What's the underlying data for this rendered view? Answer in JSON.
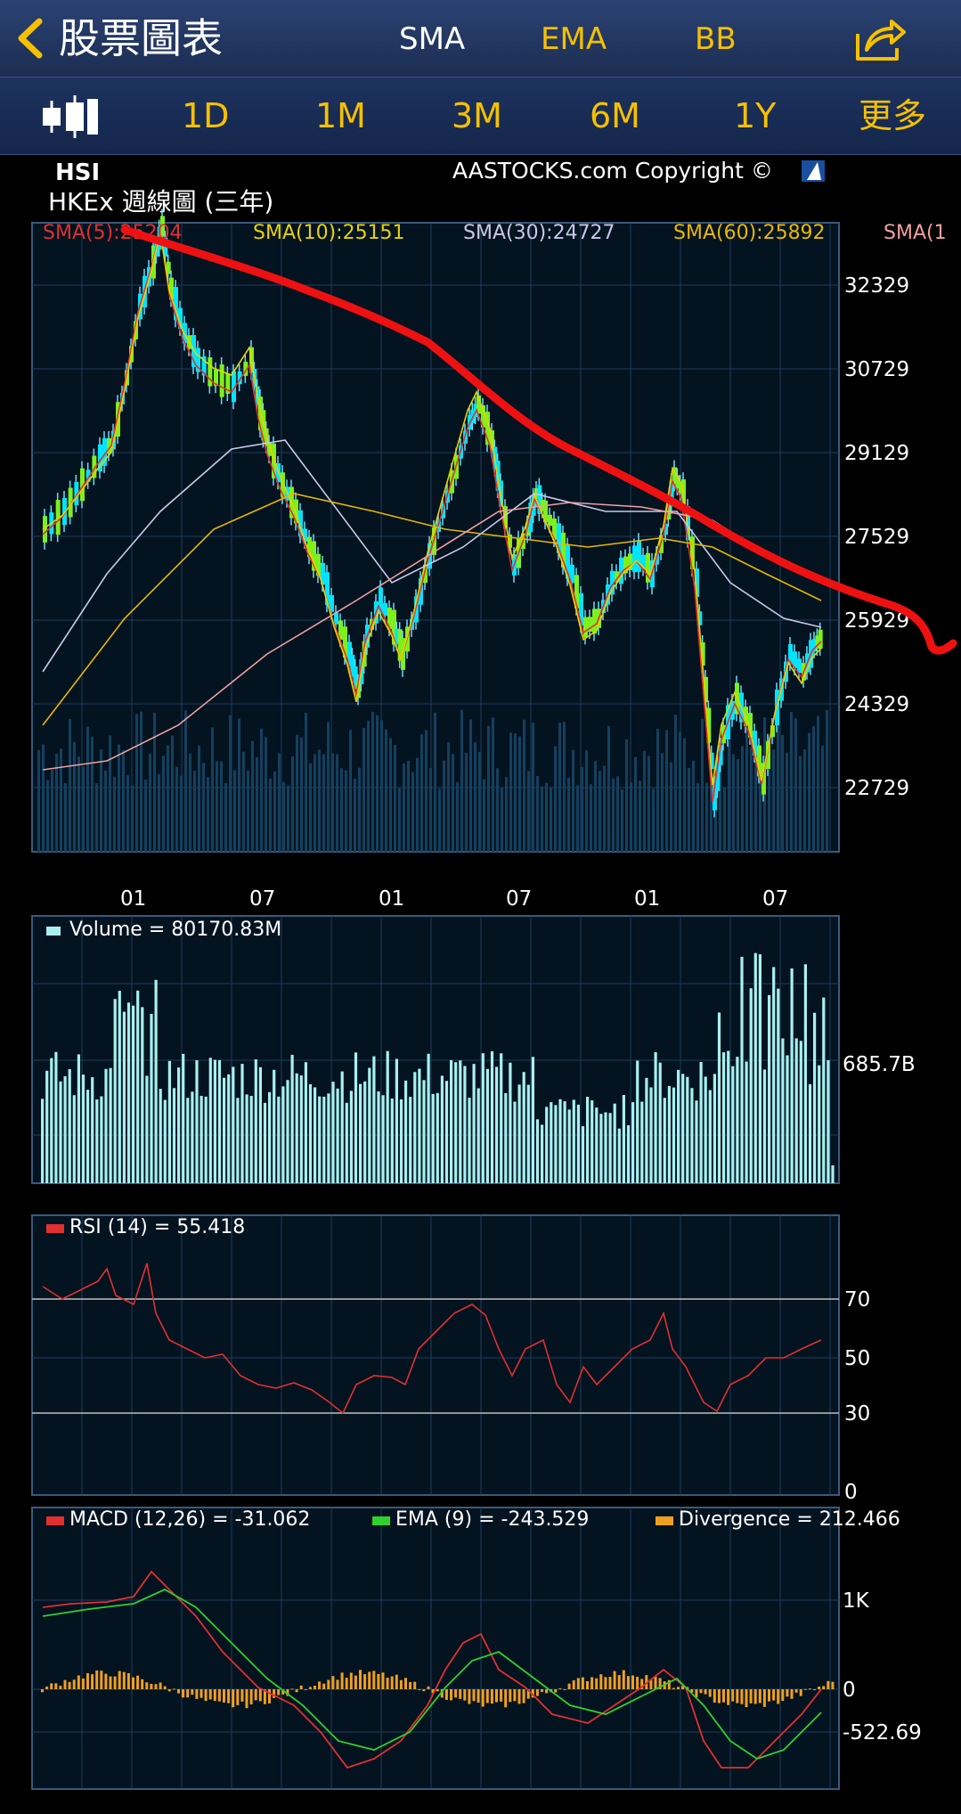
{
  "header": {
    "title": "股票圖表",
    "indicators": [
      {
        "label": "SMA",
        "color": "#ffffff"
      },
      {
        "label": "EMA",
        "color": "#f6c000"
      },
      {
        "label": "BB",
        "color": "#f6c000"
      }
    ],
    "icons": {
      "back": "chevron-left-icon",
      "share": "share-icon"
    }
  },
  "rangebar": {
    "chart_type_icon": "candlestick-icon",
    "ranges": [
      "1D",
      "1M",
      "3M",
      "6M",
      "1Y",
      "更多"
    ]
  },
  "chart": {
    "symbol": "HSI",
    "subtitle": "HKEx 週線圖 (三年)",
    "copyright": "AASTOCKS.com Copyright ©",
    "sma_legend": [
      {
        "text": "SMA(5):25204",
        "color": "#e03030"
      },
      {
        "text": "SMA(10):25151",
        "color": "#e8d200"
      },
      {
        "text": "SMA(30):24727",
        "color": "#c8c8e8"
      },
      {
        "text": "SMA(60):25892",
        "color": "#e8b800"
      },
      {
        "text": "SMA(1",
        "color": "#f0a0a0"
      }
    ],
    "price_ticks": [
      "32329",
      "30729",
      "29129",
      "27529",
      "25929",
      "24329",
      "22729"
    ],
    "date_ticks": [
      "01",
      "07",
      "01",
      "07",
      "01",
      "07"
    ],
    "volume_label": "Volume  = 80170.83M",
    "volume_tick": "685.7B",
    "rsi_label": "RSI (14)  = 55.418",
    "rsi_ticks": [
      "70",
      "50",
      "30",
      "0"
    ],
    "macd_labels": [
      {
        "text": "MACD (12,26) = -31.062",
        "color": "#e03030"
      },
      {
        "text": "EMA (9) = -243.529",
        "color": "#30d030"
      },
      {
        "text": "Divergence = 212.466",
        "color": "#f0a020"
      }
    ],
    "macd_ticks": [
      "1K",
      "0",
      "-522.69"
    ],
    "colors": {
      "panel_bg": "#041320",
      "grid": "#1e3e5a",
      "border": "#3a5a7a",
      "text": "#ffffff",
      "annotation": "#ee1111"
    }
  },
  "chart_data": [
    {
      "type": "line",
      "title": "HSI",
      "subtitle": "HKEx 週線圖 (三年)",
      "y_ticks": [
        32329,
        30729,
        29129,
        27529,
        25929,
        24329,
        22729
      ],
      "x_ticks": [
        "01",
        "07",
        "01",
        "07",
        "01",
        "07"
      ],
      "series": [
        {
          "name": "SMA(5)",
          "last": 25204
        },
        {
          "name": "SMA(10)",
          "last": 25151
        },
        {
          "name": "SMA(30)",
          "last": 24727
        },
        {
          "name": "SMA(60)",
          "last": 25892
        }
      ]
    },
    {
      "type": "bar",
      "title": "Volume",
      "last": "80170.83M",
      "y_ticks": [
        "685.7B"
      ]
    },
    {
      "type": "line",
      "title": "RSI (14)",
      "last": 55.418,
      "y_ticks": [
        70,
        50,
        30,
        0
      ]
    },
    {
      "type": "line",
      "series": [
        {
          "name": "MACD (12,26)",
          "last": -31.062
        },
        {
          "name": "EMA (9)",
          "last": -243.529
        },
        {
          "name": "Divergence",
          "last": 212.466
        }
      ],
      "y_ticks": [
        "1K",
        "0",
        "-522.69"
      ]
    }
  ]
}
